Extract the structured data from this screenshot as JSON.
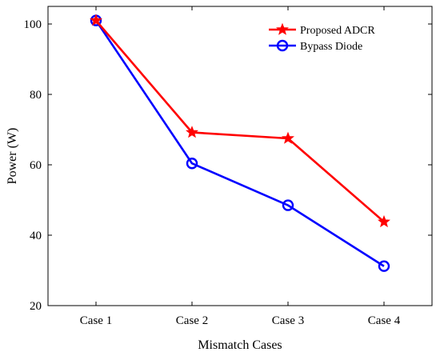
{
  "chart_data": {
    "type": "line",
    "title": "",
    "xlabel": "Mismatch Cases",
    "ylabel": "Power (W)",
    "categories": [
      "Case 1",
      "Case 2",
      "Case 3",
      "Case 4"
    ],
    "ylim": [
      20,
      105
    ],
    "yticks": [
      20,
      40,
      60,
      80,
      100
    ],
    "grid": false,
    "legend_position": "top-right",
    "series": [
      {
        "name": "Proposed ADCR",
        "marker": "star",
        "color": "#ff0000",
        "values": [
          101,
          69.2,
          67.5,
          43.8
        ]
      },
      {
        "name": "Bypass Diode",
        "marker": "circle",
        "color": "#0000ff",
        "values": [
          101,
          60.4,
          48.5,
          31.2
        ]
      }
    ]
  }
}
